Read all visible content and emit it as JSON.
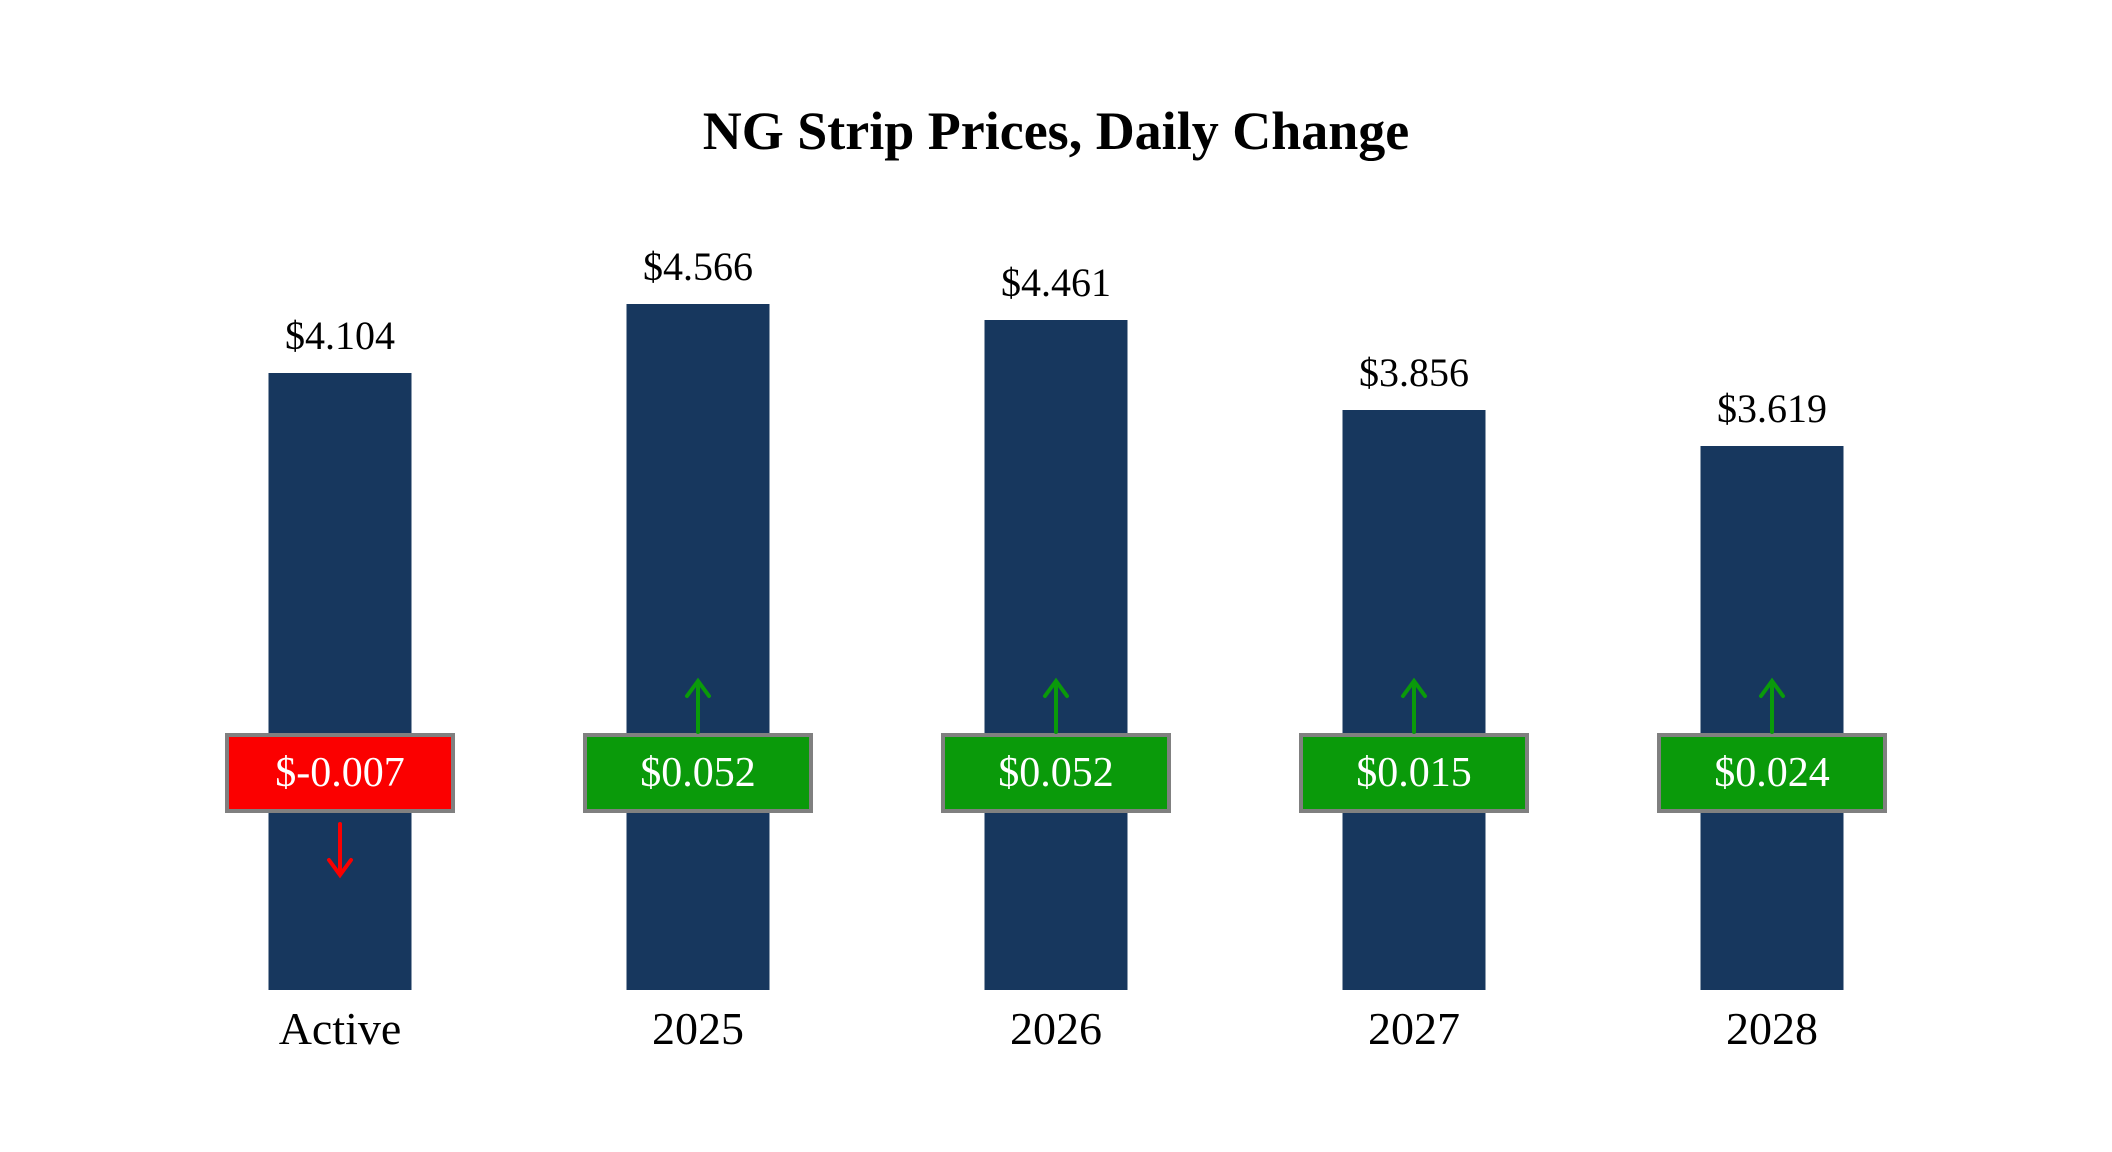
{
  "title": "NG Strip Prices, Daily Change",
  "chart_data": {
    "type": "bar",
    "title": "NG Strip Prices, Daily Change",
    "categories": [
      "Active",
      "2025",
      "2026",
      "2027",
      "2028"
    ],
    "values": [
      4.104,
      4.566,
      4.461,
      3.856,
      3.619
    ],
    "value_labels": [
      "$4.104",
      "$4.566",
      "$4.461",
      "$3.856",
      "$3.619"
    ],
    "changes": [
      -0.007,
      0.052,
      0.052,
      0.015,
      0.024
    ],
    "change_labels": [
      "$-0.007",
      "$0.052",
      "$0.052",
      "$0.015",
      "$0.024"
    ],
    "xlabel": "",
    "ylabel": "",
    "ylim": [
      0,
      5.5
    ],
    "grid": false,
    "legend": "none",
    "colors": {
      "bar": "#17375E",
      "positive_badge": "#0A9A0A",
      "negative_badge": "#FB0000",
      "badge_border": "#808080",
      "badge_text": "#FFFFFF",
      "background": "#FFFFFF",
      "text": "#000000"
    }
  }
}
